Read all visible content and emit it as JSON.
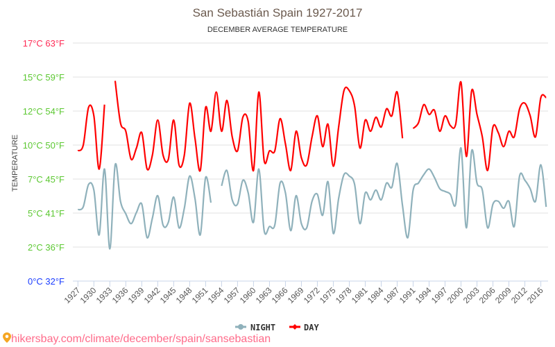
{
  "chart_data": {
    "type": "line",
    "title": "San Sebastián Spain 1927-2017",
    "subtitle": "DECEMBER AVERAGE TEMPERATURE",
    "ylabel": "TEMPERATURE",
    "xlabel": "",
    "ylim": [
      0,
      17
    ],
    "grid": true,
    "legend_position": "bottom",
    "y_ticks": [
      {
        "label": "0°C 32°F",
        "color": "#1a3cff"
      },
      {
        "label": "2°C 36°F",
        "color": "#5cc832"
      },
      {
        "label": "5°C 41°F",
        "color": "#5cc832"
      },
      {
        "label": "7°C 45°F",
        "color": "#5cc832"
      },
      {
        "label": "10°C 50°F",
        "color": "#5cc832"
      },
      {
        "label": "12°C 54°F",
        "color": "#5cc832"
      },
      {
        "label": "15°C 59°F",
        "color": "#5cc832"
      },
      {
        "label": "17°C 63°F",
        "color": "#ff2a55"
      }
    ],
    "categories": [
      1927,
      1928,
      1929,
      1930,
      1931,
      1932,
      1933,
      1934,
      1935,
      1936,
      1937,
      1938,
      1939,
      1940,
      1941,
      1942,
      1943,
      1944,
      1945,
      1946,
      1947,
      1948,
      1949,
      1950,
      1951,
      1952,
      1953,
      1954,
      1955,
      1956,
      1957,
      1958,
      1959,
      1960,
      1961,
      1962,
      1963,
      1964,
      1965,
      1966,
      1967,
      1968,
      1969,
      1970,
      1971,
      1972,
      1973,
      1974,
      1975,
      1976,
      1977,
      1978,
      1979,
      1980,
      1981,
      1982,
      1983,
      1984,
      1985,
      1986,
      1987,
      1988,
      1989,
      1991,
      1992,
      1993,
      1994,
      1995,
      1996,
      1997,
      1998,
      1999,
      2000,
      2001,
      2002,
      2003,
      2004,
      2005,
      2006,
      2007,
      2008,
      2009,
      2010,
      2011,
      2012,
      2013,
      2015,
      2016,
      2017
    ],
    "x_tick_labels": [
      "1927",
      "1930",
      "1933",
      "1936",
      "1939",
      "1942",
      "1945",
      "1948",
      "1951",
      "1954",
      "1957",
      "1960",
      "1963",
      "1966",
      "1969",
      "1972",
      "1975",
      "1978",
      "1981",
      "1984",
      "1987",
      "1991",
      "1994",
      "1997",
      "2000",
      "2003",
      "2006",
      "2009",
      "2012",
      "2016"
    ],
    "series": [
      {
        "name": "NIGHT",
        "color": "#8fb1bb",
        "values": [
          5.1,
          5.3,
          6.9,
          6.5,
          3.3,
          8.0,
          2.3,
          8.3,
          5.7,
          4.8,
          4.1,
          4.9,
          5.5,
          3.1,
          4.5,
          6.1,
          4.0,
          4.2,
          6.0,
          3.8,
          5.2,
          7.5,
          5.9,
          3.3,
          7.4,
          5.6,
          null,
          6.8,
          7.9,
          5.8,
          5.5,
          7.2,
          6.3,
          4.2,
          8.0,
          3.6,
          3.9,
          4.0,
          7.0,
          6.3,
          3.6,
          6.1,
          4.1,
          3.8,
          5.7,
          6.2,
          4.7,
          7.1,
          3.4,
          5.9,
          7.6,
          7.5,
          6.9,
          4.1,
          6.3,
          5.8,
          6.5,
          5.8,
          7.0,
          6.7,
          8.4,
          5.4,
          3.1,
          6.5,
          7.0,
          7.6,
          8.0,
          7.4,
          6.6,
          6.4,
          6.2,
          5.5,
          9.5,
          3.8,
          9.3,
          7.0,
          6.5,
          3.8,
          5.5,
          5.7,
          5.2,
          5.7,
          3.9,
          7.5,
          7.2,
          6.6,
          5.7,
          8.3,
          5.3
        ]
      },
      {
        "name": "DAY",
        "color": "#ff0000",
        "values": [
          9.3,
          9.7,
          12.4,
          11.8,
          8.0,
          12.6,
          null,
          14.3,
          11.3,
          10.7,
          8.7,
          9.5,
          10.6,
          8.0,
          9.0,
          11.5,
          9.0,
          8.7,
          11.5,
          8.3,
          9.0,
          12.7,
          10.2,
          7.9,
          12.4,
          10.7,
          13.5,
          10.7,
          12.9,
          10.3,
          9.3,
          11.7,
          11.4,
          7.9,
          13.5,
          8.6,
          9.3,
          9.3,
          11.6,
          9.8,
          7.9,
          10.7,
          8.8,
          8.3,
          10.3,
          11.8,
          9.6,
          11.2,
          8.2,
          11.0,
          13.6,
          13.6,
          12.5,
          9.5,
          11.5,
          10.7,
          11.7,
          11.0,
          12.3,
          11.8,
          13.5,
          10.2,
          null,
          10.9,
          11.3,
          12.6,
          11.9,
          12.2,
          10.7,
          11.8,
          11.1,
          11.2,
          14.2,
          8.9,
          13.6,
          11.9,
          10.3,
          7.9,
          11.0,
          10.6,
          9.6,
          10.7,
          10.3,
          12.3,
          12.7,
          11.8,
          10.3,
          13.1,
          13.1
        ]
      }
    ]
  },
  "footer": {
    "link_text": "hikersbay.com/climate/december/spain/sansebastian",
    "icon": "map-pin-icon"
  }
}
